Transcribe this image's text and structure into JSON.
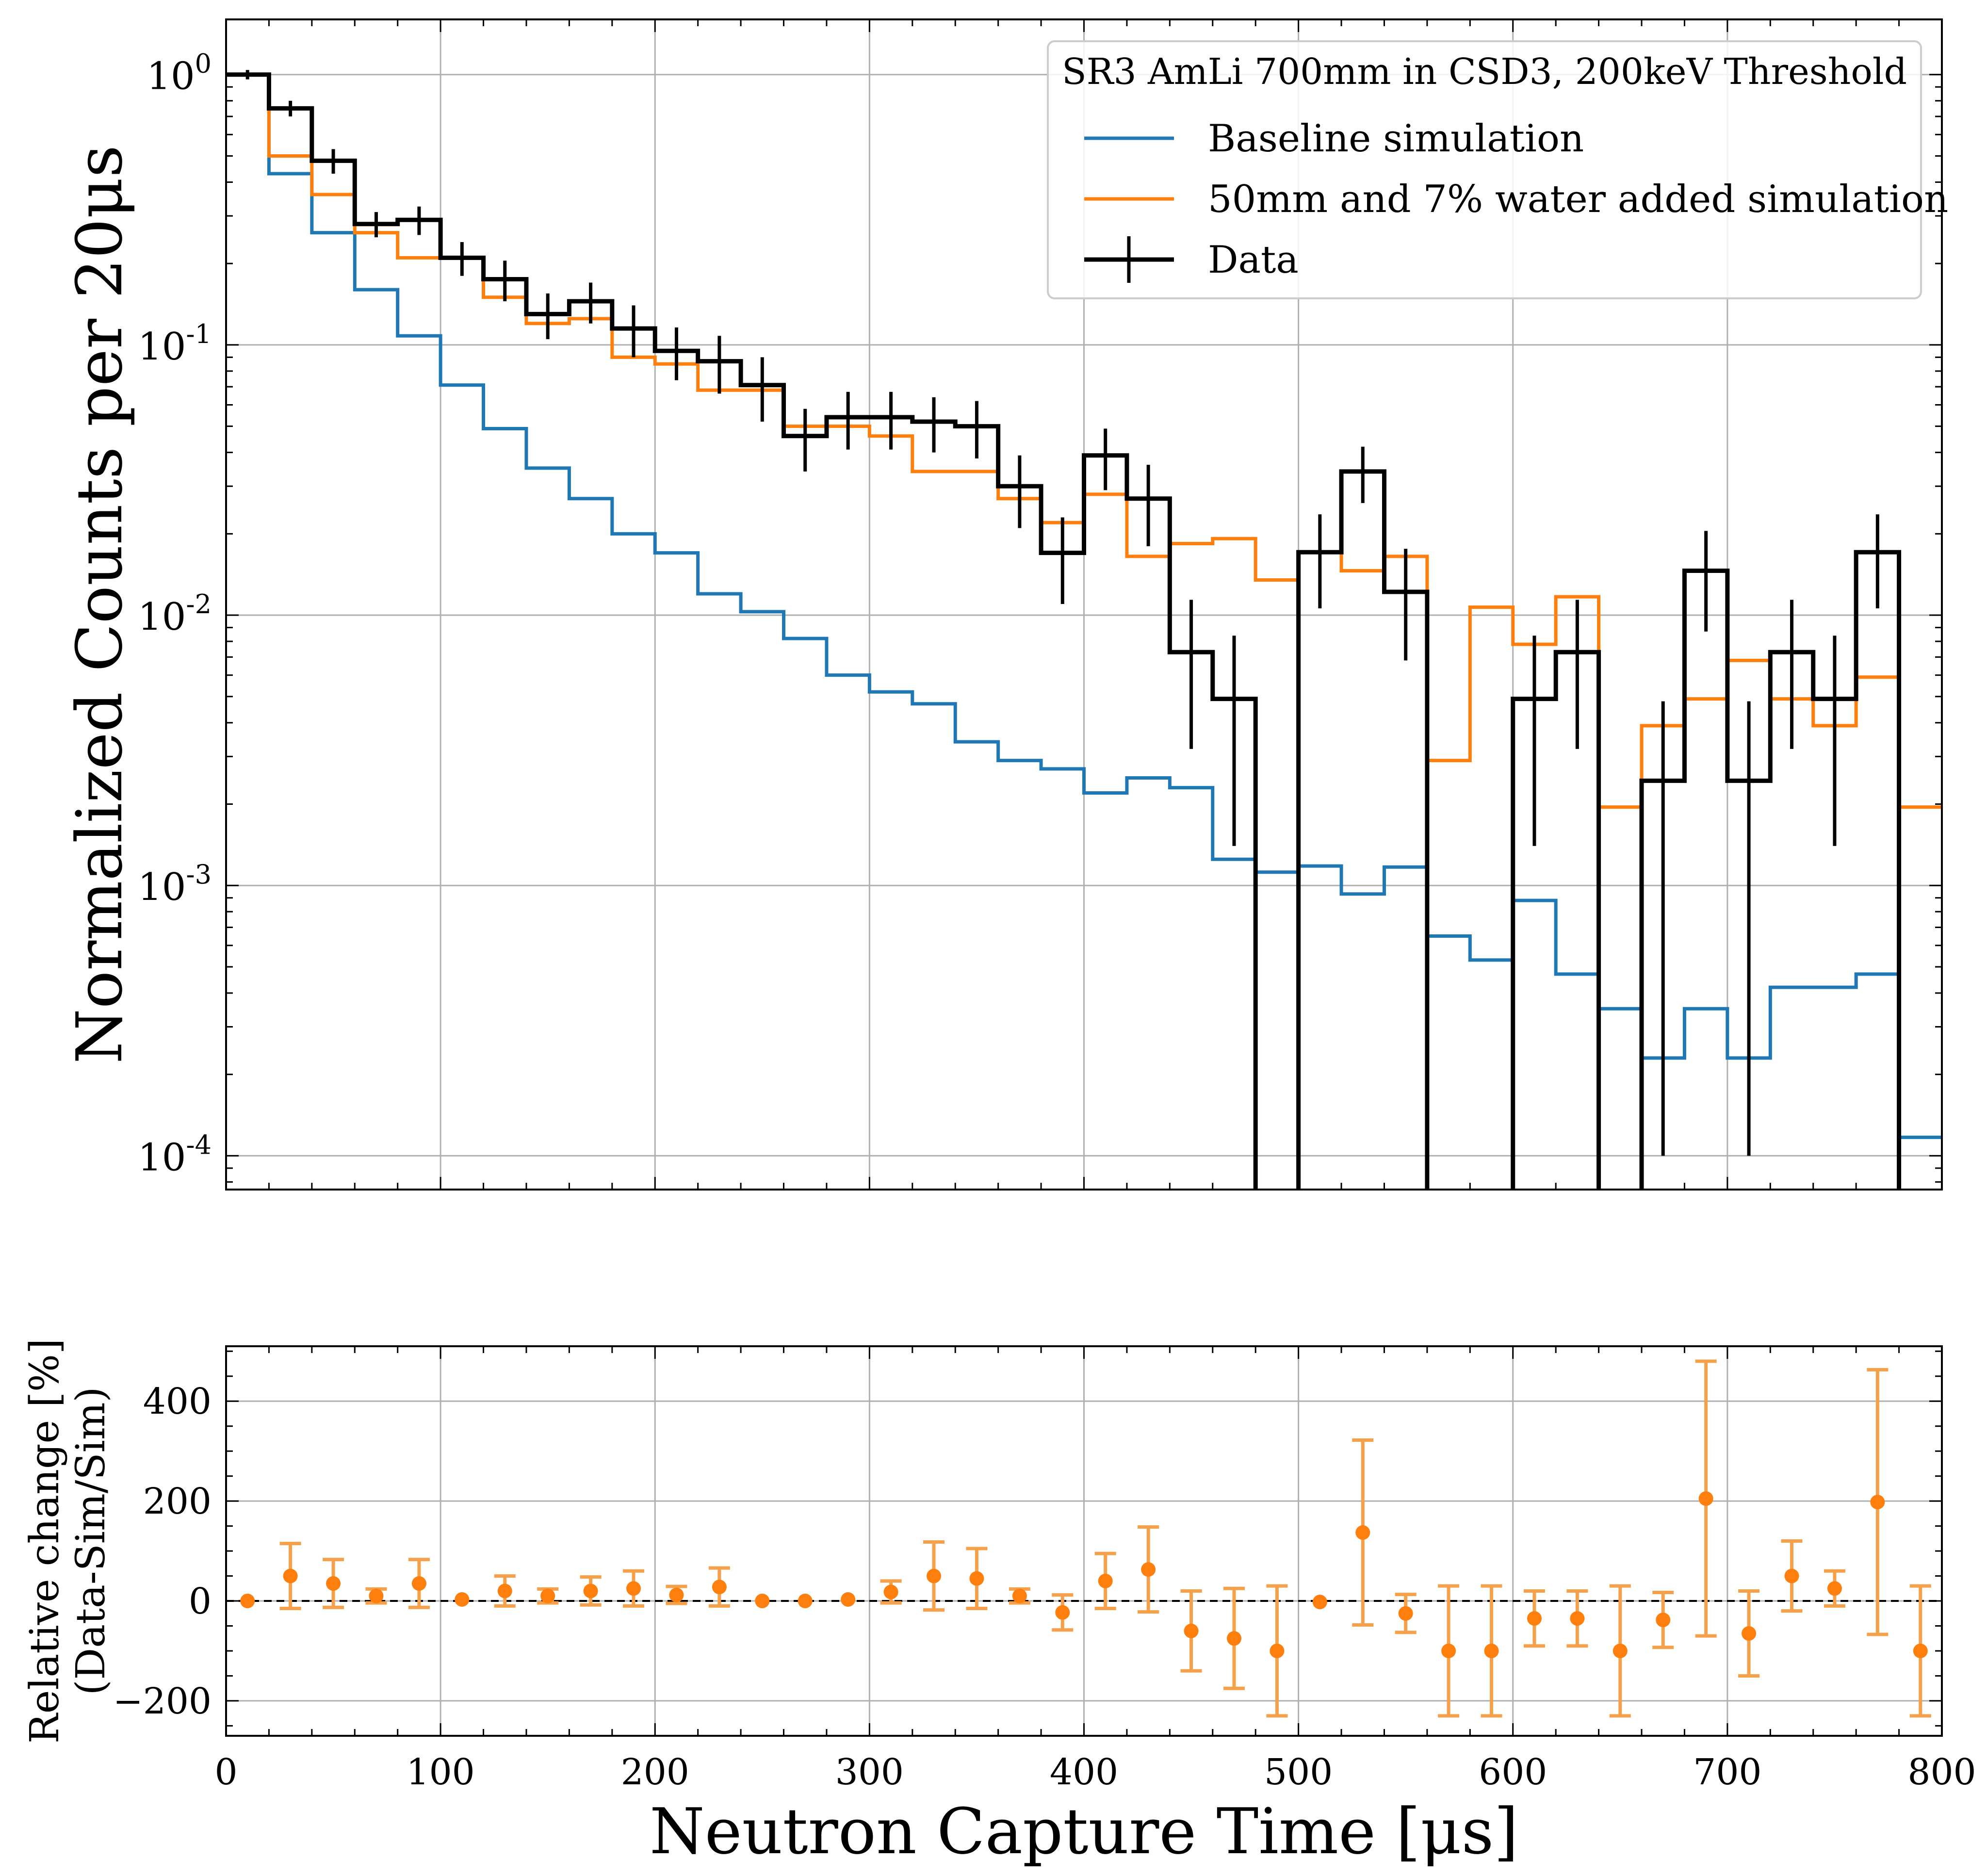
{
  "chart_data": [
    {
      "type": "line",
      "panel": "top",
      "xlabel": "",
      "ylabel": "Normalized Counts per 20μs",
      "xlim": [
        0,
        800
      ],
      "ylim": [
        7.5e-05,
        1.6
      ],
      "yscale": "log",
      "grid": true,
      "legend_location": "upper right",
      "legend_title": "SR3 AmLi 700mm in CSD3, 200keV Threshold",
      "x_ticks": [
        0,
        100,
        200,
        300,
        400,
        500,
        600,
        700,
        800
      ],
      "y_ticks": [
        {
          "value": 1,
          "base": "10",
          "exp": "0"
        },
        {
          "value": 0.1,
          "base": "10",
          "exp": "-1"
        },
        {
          "value": 0.01,
          "base": "10",
          "exp": "-2"
        },
        {
          "value": 0.001,
          "base": "10",
          "exp": "-3"
        },
        {
          "value": 0.0001,
          "base": "10",
          "exp": "-4"
        }
      ],
      "bin_edges": [
        0,
        20,
        40,
        60,
        80,
        100,
        120,
        140,
        160,
        180,
        200,
        220,
        240,
        260,
        280,
        300,
        320,
        340,
        360,
        380,
        400,
        420,
        440,
        460,
        480,
        500,
        520,
        540,
        560,
        580,
        600,
        620,
        640,
        660,
        680,
        700,
        720,
        740,
        760,
        780,
        800
      ],
      "series": [
        {
          "name": "Baseline simulation",
          "color": "#1f77b4",
          "style": "step",
          "values": [
            1.0,
            0.43,
            0.26,
            0.16,
            0.108,
            0.071,
            0.049,
            0.035,
            0.027,
            0.02,
            0.017,
            0.012,
            0.0103,
            0.0082,
            0.006,
            0.0052,
            0.0047,
            0.0034,
            0.0029,
            0.0027,
            0.0022,
            0.0025,
            0.0023,
            0.00125,
            0.00112,
            0.00118,
            0.00093,
            0.00117,
            0.00065,
            0.00053,
            0.00088,
            0.00047,
            0.00035,
            0.00023,
            0.00035,
            0.00023,
            0.00042,
            0.00042,
            0.00047,
            0.000117
          ]
        },
        {
          "name": "50mm and 7% water added simulation",
          "color": "#ff7f0e",
          "style": "step",
          "values": [
            1.0,
            0.5,
            0.36,
            0.26,
            0.21,
            0.21,
            0.15,
            0.12,
            0.125,
            0.09,
            0.085,
            0.068,
            0.068,
            0.05,
            0.05,
            0.046,
            0.034,
            0.034,
            0.027,
            0.022,
            0.028,
            0.0165,
            0.0184,
            0.0192,
            0.0135,
            0.0171,
            0.0146,
            0.0165,
            0.0029,
            0.0107,
            0.0078,
            0.0117,
            0.00195,
            0.0039,
            0.0049,
            0.0068,
            0.0049,
            0.0039,
            0.0059,
            0.00195
          ]
        },
        {
          "name": "Data",
          "color": "#000000",
          "style": "step-errorbar",
          "values": [
            1.0,
            0.75,
            0.48,
            0.28,
            0.29,
            0.21,
            0.175,
            0.13,
            0.145,
            0.115,
            0.095,
            0.087,
            0.071,
            0.046,
            0.054,
            0.054,
            0.052,
            0.05,
            0.03,
            0.017,
            0.039,
            0.027,
            0.0073,
            0.0049,
            0,
            0.0171,
            0.034,
            0.0122,
            0,
            0,
            0.0049,
            0.0073,
            0,
            0.00244,
            0.0146,
            0.00244,
            0.0073,
            0.0049,
            0.0171,
            0
          ],
          "err_low": [
            0.96,
            0.7,
            0.43,
            0.25,
            0.255,
            0.18,
            0.145,
            0.105,
            0.12,
            0.09,
            0.074,
            0.066,
            0.052,
            0.034,
            0.041,
            0.041,
            0.04,
            0.038,
            0.021,
            0.011,
            0.029,
            0.018,
            0.0032,
            0.0014,
            null,
            0.0106,
            0.026,
            0.0068,
            null,
            null,
            0.0014,
            0.0032,
            null,
            0.0001,
            0.0087,
            0.0001,
            0.0032,
            0.0014,
            0.0106,
            null
          ],
          "err_high": [
            1.04,
            0.8,
            0.53,
            0.31,
            0.325,
            0.24,
            0.205,
            0.155,
            0.17,
            0.14,
            0.116,
            0.108,
            0.09,
            0.058,
            0.067,
            0.067,
            0.064,
            0.062,
            0.039,
            0.023,
            0.049,
            0.036,
            0.0114,
            0.0084,
            null,
            0.0236,
            0.042,
            0.0176,
            null,
            null,
            0.0084,
            0.0114,
            null,
            0.0048,
            0.0205,
            0.0048,
            0.0114,
            0.0084,
            0.0236,
            null
          ]
        }
      ]
    },
    {
      "type": "scatter",
      "panel": "bottom",
      "xlabel": "Neutron Capture Time [μs]",
      "ylabel_line1": "Relative change [%]",
      "ylabel_line2": "(Data-Sim/Sim)",
      "xlim": [
        0,
        800
      ],
      "ylim": [
        -270,
        510
      ],
      "grid": true,
      "reference_line": 0,
      "x_ticks": [
        0,
        100,
        200,
        300,
        400,
        500,
        600,
        700,
        800
      ],
      "x_tick_labels": [
        "0",
        "100",
        "200",
        "300",
        "400",
        "500",
        "600",
        "700",
        "800"
      ],
      "y_ticks": [
        -200,
        0,
        200,
        400
      ],
      "y_tick_labels": [
        "−200",
        "0",
        "200",
        "400"
      ],
      "series": [
        {
          "color": "#ff7f0e",
          "x": [
            10,
            30,
            50,
            70,
            90,
            110,
            130,
            150,
            170,
            190,
            210,
            230,
            250,
            270,
            290,
            310,
            330,
            350,
            370,
            390,
            410,
            430,
            450,
            470,
            490,
            510,
            530,
            550,
            570,
            590,
            610,
            630,
            650,
            670,
            690,
            710,
            730,
            750,
            770,
            790
          ],
          "y": [
            0,
            50,
            35,
            10,
            35,
            3,
            20,
            10,
            20,
            25,
            12,
            28,
            0,
            0,
            3,
            18,
            50,
            45,
            10,
            -23,
            40,
            63,
            -60,
            -75,
            -100,
            -2,
            137,
            -25,
            -100,
            -100,
            -35,
            -35,
            -100,
            -38,
            205,
            -65,
            50,
            25,
            198,
            -100
          ],
          "err_low": [
            3,
            65,
            48,
            14,
            48,
            5,
            30,
            14,
            28,
            35,
            17,
            38,
            4,
            4,
            5,
            22,
            68,
            60,
            14,
            35,
            55,
            85,
            80,
            100,
            130,
            5,
            185,
            38,
            130,
            130,
            55,
            55,
            130,
            55,
            275,
            85,
            70,
            35,
            265,
            130
          ],
          "err_high": [
            3,
            65,
            48,
            14,
            48,
            5,
            30,
            14,
            28,
            35,
            17,
            38,
            4,
            4,
            5,
            22,
            68,
            60,
            14,
            35,
            55,
            85,
            80,
            100,
            130,
            5,
            185,
            38,
            130,
            130,
            55,
            55,
            130,
            55,
            275,
            85,
            70,
            35,
            265,
            130
          ]
        }
      ]
    }
  ]
}
